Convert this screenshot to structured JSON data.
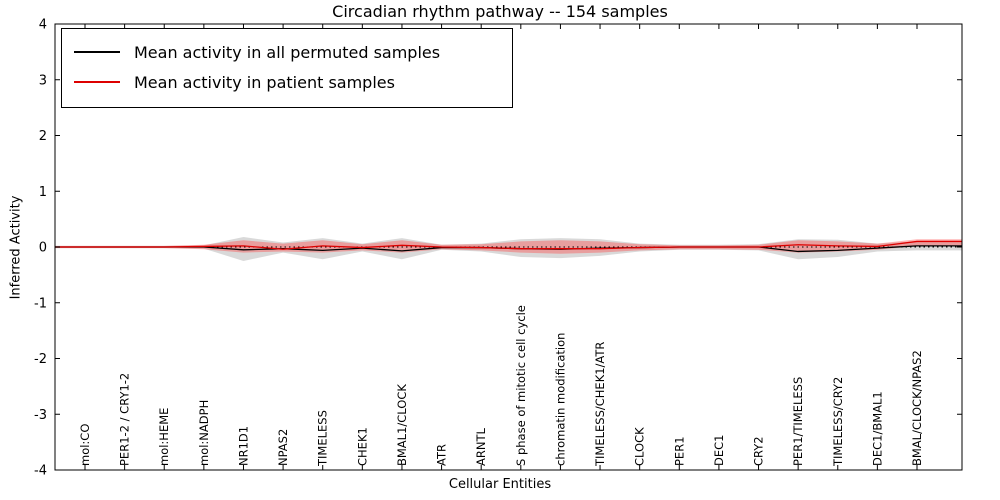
{
  "figure": {
    "background": "#ffffff"
  },
  "chart_data": {
    "type": "line",
    "title": "Circadian rhythm pathway -- 154 samples",
    "xlabel": "Cellular Entities",
    "ylabel": "Inferred Activity",
    "ylim": [
      -4,
      4
    ],
    "yticks": [
      -4,
      -3,
      -2,
      -1,
      0,
      1,
      2,
      3,
      4
    ],
    "grid": false,
    "legend_position": "upper left",
    "zero_line": {
      "style": "dotted",
      "color": "#000000"
    },
    "categories": [
      "mol:CO",
      "PER1-2 / CRY1-2",
      "mol:HEME",
      "mol:NADPH",
      "NR1D1",
      "NPAS2",
      "TIMELESS",
      "CHEK1",
      "BMAL1/CLOCK",
      "ATR",
      "ARNTL",
      "S phase of mitotic cell cycle",
      "chromatin modification",
      "TIMELESS/CHEK1/ATR",
      "CLOCK",
      "PER1",
      "DEC1",
      "CRY2",
      "PER1/TIMELESS",
      "TIMELESS/CRY2",
      "DEC1/BMAL1",
      "BMAL/CLOCK/NPAS2"
    ],
    "series": [
      {
        "name": "Mean activity in all permuted samples",
        "color": "#000000",
        "band_color": "rgba(130,130,130,0.30)",
        "values": [
          0.0,
          0.0,
          0.0,
          0.0,
          -0.05,
          -0.03,
          -0.06,
          -0.02,
          -0.07,
          -0.01,
          -0.01,
          -0.03,
          -0.04,
          -0.02,
          -0.01,
          0.0,
          0.0,
          0.0,
          -0.08,
          -0.06,
          -0.02,
          0.02
        ],
        "band_upper": [
          0.02,
          0.02,
          0.02,
          0.03,
          0.18,
          0.08,
          0.16,
          0.06,
          0.16,
          0.04,
          0.06,
          0.14,
          0.16,
          0.14,
          0.06,
          0.04,
          0.04,
          0.05,
          0.14,
          0.13,
          0.06,
          0.1
        ],
        "band_lower": [
          -0.02,
          -0.02,
          -0.02,
          -0.03,
          -0.25,
          -0.1,
          -0.22,
          -0.08,
          -0.22,
          -0.05,
          -0.08,
          -0.18,
          -0.2,
          -0.16,
          -0.08,
          -0.05,
          -0.05,
          -0.06,
          -0.22,
          -0.18,
          -0.08,
          -0.06
        ]
      },
      {
        "name": "Mean activity in patient samples",
        "color": "#dd0000",
        "band_color": "rgba(255,70,70,0.40)",
        "values": [
          0.0,
          0.0,
          0.0,
          0.01,
          0.02,
          -0.04,
          0.02,
          -0.01,
          0.03,
          0.0,
          -0.01,
          -0.03,
          -0.03,
          -0.03,
          -0.01,
          0.0,
          0.0,
          0.0,
          0.04,
          0.02,
          0.01,
          0.1
        ],
        "band_upper": [
          0.02,
          0.02,
          0.02,
          0.04,
          0.12,
          0.06,
          0.12,
          0.05,
          0.12,
          0.04,
          0.05,
          0.1,
          0.12,
          0.1,
          0.05,
          0.03,
          0.03,
          0.04,
          0.12,
          0.1,
          0.06,
          0.14
        ],
        "band_lower": [
          -0.02,
          -0.02,
          -0.02,
          -0.04,
          -0.1,
          -0.08,
          -0.1,
          -0.06,
          -0.1,
          -0.04,
          -0.06,
          -0.1,
          -0.12,
          -0.1,
          -0.06,
          -0.04,
          -0.04,
          -0.05,
          -0.1,
          -0.08,
          -0.05,
          0.02
        ]
      }
    ]
  }
}
